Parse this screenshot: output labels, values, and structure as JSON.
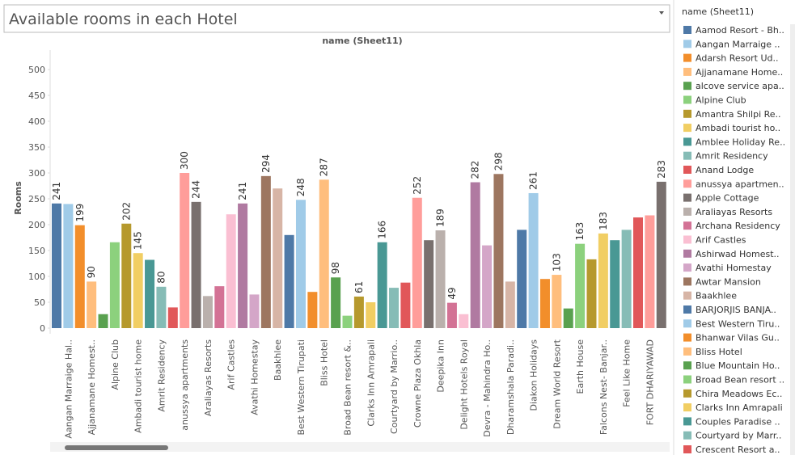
{
  "header": {
    "title": "Available rooms in each Hotel"
  },
  "chart_data": {
    "type": "bar",
    "column_header": "name (Sheet11)",
    "y_label": "Rooms",
    "categories": [
      null,
      "Aangan Marraige Hal..",
      null,
      "Ajjanamane Homest..",
      null,
      "Alpine Club",
      null,
      "Ambadi tourist home",
      null,
      "Amrit Residency",
      null,
      "anussya apartments",
      null,
      "Araliayas Resorts",
      null,
      "Arif Castles",
      null,
      "Avathi Homestay",
      null,
      "Baakhlee",
      null,
      "Best Western Tirupati",
      null,
      "Bliss Hotel",
      null,
      "Broad Bean resort &..",
      null,
      "Clarks Inn Amrapali",
      null,
      "Courtyard by Marrio..",
      null,
      "Crowne Plaza Okhla",
      null,
      "Deepika Inn",
      null,
      "Delight Hotels Royal",
      null,
      "Devra - Mahindra Ho..",
      null,
      "Dharamshala Paradi..",
      null,
      "Diakon Holidays",
      null,
      "Dream World Resort",
      null,
      "Earth House",
      null,
      "Falcons Nest- Banjar..",
      null,
      "Feel Like Home",
      null,
      "FORT DHARIYAWAD",
      null
    ],
    "values": [
      241,
      240,
      199,
      90,
      27,
      166,
      202,
      145,
      132,
      80,
      40,
      300,
      244,
      62,
      81,
      220,
      241,
      65,
      294,
      270,
      180,
      248,
      70,
      287,
      98,
      24,
      61,
      50,
      166,
      78,
      88,
      252,
      170,
      189,
      49,
      27,
      282,
      160,
      298,
      90,
      190,
      261,
      95,
      103,
      38,
      163,
      133,
      183,
      170,
      190,
      214,
      218,
      283
    ],
    "show_labels": [
      true,
      false,
      true,
      true,
      false,
      false,
      true,
      true,
      false,
      true,
      false,
      true,
      true,
      false,
      false,
      false,
      true,
      false,
      true,
      false,
      false,
      true,
      false,
      true,
      true,
      false,
      true,
      false,
      true,
      false,
      false,
      true,
      false,
      true,
      true,
      false,
      true,
      false,
      true,
      false,
      false,
      true,
      false,
      true,
      false,
      true,
      false,
      true,
      false,
      false,
      false,
      false,
      true
    ],
    "palette": [
      "#4e79a7",
      "#a0cbe8",
      "#f28e2b",
      "#ffbe7d",
      "#59a14f",
      "#8cd17d",
      "#b6992d",
      "#f1ce63",
      "#499894",
      "#86bcb6",
      "#e15759",
      "#ff9d9a",
      "#79706e",
      "#bab0ac",
      "#d37295",
      "#fabfd2",
      "#b07aa1",
      "#d4a6c8",
      "#9d7660",
      "#d7b5a6"
    ],
    "ylim": [
      0,
      500
    ],
    "yticks": [
      0,
      50,
      100,
      150,
      200,
      250,
      300,
      350,
      400,
      450,
      500
    ],
    "grid": false
  },
  "legend": {
    "title": "name (Sheet11)",
    "items": [
      "Aamod Resort - Bh..",
      "Aangan Marraige ..",
      "Adarsh Resort Ud..",
      "Ajjanamane Home..",
      "alcove service apa..",
      "Alpine Club",
      "Amantra Shilpi Re..",
      "Ambadi tourist ho..",
      "Amblee Holiday Re..",
      "Amrit Residency",
      "Anand Lodge",
      "anussya apartmen..",
      "Apple Cottage",
      "Araliayas Resorts",
      "Archana Residency",
      "Arif Castles",
      "Ashirwad Homest..",
      "Avathi Homestay",
      "Awtar Mansion",
      "Baakhlee",
      "BARJORJIS BANJA..",
      "Best Western Tiru..",
      "Bhanwar Vilas Gu..",
      "Bliss Hotel",
      "Blue Mountain Ho..",
      "Broad Bean resort ..",
      "Chira Meadows Ec..",
      "Clarks Inn Amrapali",
      "Couples Paradise ..",
      "Courtyard by Marr..",
      "Crescent Resort a.."
    ]
  }
}
